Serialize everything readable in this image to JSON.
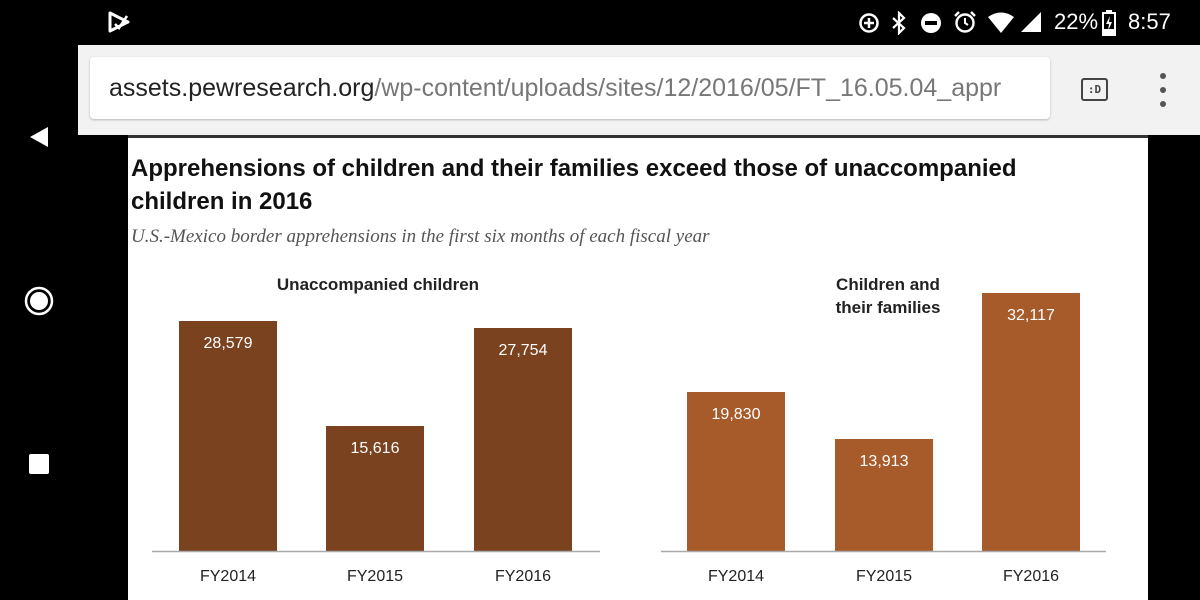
{
  "status_bar": {
    "battery_percent": "22%",
    "time": "8:57",
    "icons": [
      "play-store-icon",
      "data-saver-icon",
      "bluetooth-icon",
      "do-not-disturb-icon",
      "alarm-icon",
      "wifi-icon",
      "cell-signal-icon",
      "battery-charging-icon"
    ]
  },
  "browser": {
    "url_host": "assets.pewresearch.org",
    "url_path": "/wp-content/uploads/sites/12/2016/05/FT_16.05.04_appr",
    "reader_mode_label": ":D",
    "icons": [
      "reader-mode-icon",
      "more-vert-icon"
    ]
  },
  "nav_bar": {
    "icons": [
      "back-icon",
      "home-icon",
      "recents-icon"
    ]
  },
  "chart_data": [
    {
      "type": "bar",
      "panel_title": "Unaccompanied children",
      "title": "Apprehensions of children and their families exceed those of unaccompanied children in 2016",
      "subtitle": "U.S.-Mexico border apprehensions in the first six months of each fiscal year",
      "categories": [
        "FY2014",
        "FY2015",
        "FY2016"
      ],
      "values": [
        28579,
        15616,
        27754
      ],
      "value_labels": [
        "28,579",
        "15,616",
        "27,754"
      ],
      "ylim": [
        0,
        32117
      ],
      "xlabel": "",
      "ylabel": "",
      "grid": false,
      "color": "#7a421e"
    },
    {
      "type": "bar",
      "panel_title": "Children and their families",
      "categories": [
        "FY2014",
        "FY2015",
        "FY2016"
      ],
      "values": [
        19830,
        13913,
        32117
      ],
      "value_labels": [
        "19,830",
        "13,913",
        "32,117"
      ],
      "ylim": [
        0,
        32117
      ],
      "xlabel": "",
      "ylabel": "",
      "grid": false,
      "color": "#a75b2a"
    }
  ]
}
